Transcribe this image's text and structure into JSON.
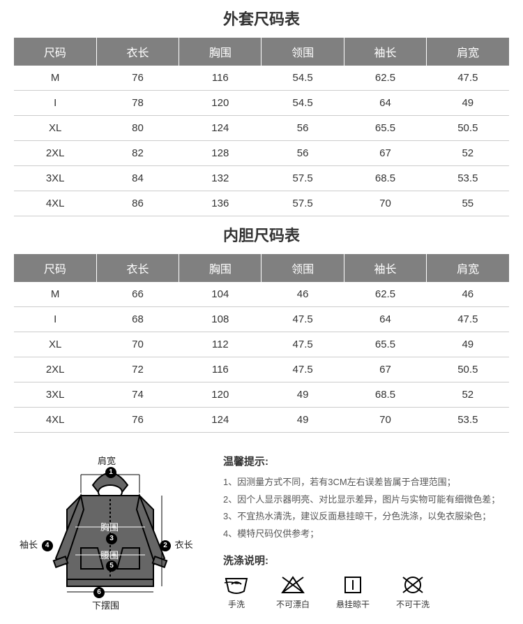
{
  "table1": {
    "title": "外套尺码表",
    "columns": [
      "尺码",
      "衣长",
      "胸围",
      "领围",
      "袖长",
      "肩宽"
    ],
    "rows": [
      [
        "M",
        "76",
        "116",
        "54.5",
        "62.5",
        "47.5"
      ],
      [
        "I",
        "78",
        "120",
        "54.5",
        "64",
        "49"
      ],
      [
        "XL",
        "80",
        "124",
        "56",
        "65.5",
        "50.5"
      ],
      [
        "2XL",
        "82",
        "128",
        "56",
        "67",
        "52"
      ],
      [
        "3XL",
        "84",
        "132",
        "57.5",
        "68.5",
        "53.5"
      ],
      [
        "4XL",
        "86",
        "136",
        "57.5",
        "70",
        "55"
      ]
    ],
    "header_bg": "#808080",
    "header_fg": "#ffffff",
    "row_border": "#cccccc"
  },
  "table2": {
    "title": "内胆尺码表",
    "columns": [
      "尺码",
      "衣长",
      "胸围",
      "领围",
      "袖长",
      "肩宽"
    ],
    "rows": [
      [
        "M",
        "66",
        "104",
        "46",
        "62.5",
        "46"
      ],
      [
        "I",
        "68",
        "108",
        "47.5",
        "64",
        "47.5"
      ],
      [
        "XL",
        "70",
        "112",
        "47.5",
        "65.5",
        "49"
      ],
      [
        "2XL",
        "72",
        "116",
        "47.5",
        "67",
        "50.5"
      ],
      [
        "3XL",
        "74",
        "120",
        "49",
        "68.5",
        "52"
      ],
      [
        "4XL",
        "76",
        "124",
        "49",
        "70",
        "53.5"
      ]
    ],
    "header_bg": "#808080",
    "header_fg": "#ffffff",
    "row_border": "#cccccc"
  },
  "diagram": {
    "labels": {
      "shoulder": "肩宽",
      "chest": "胸围",
      "waist": "腰围",
      "sleeve": "袖长",
      "length": "衣长",
      "hem": "下摆围"
    },
    "badges": [
      "1",
      "2",
      "3",
      "4",
      "5",
      "6"
    ]
  },
  "notes": {
    "title": "温馨提示:",
    "items": [
      "1、因测量方式不同，若有3CM左右误差皆属于合理范围；",
      "2、因个人显示器明亮、对比显示差异，图片与实物可能有细微色差；",
      "3、不宜热水清洗，建议反面悬挂晾干，分色洗涤，以免衣服染色；",
      "4、模特尺码仅供参考；"
    ]
  },
  "wash": {
    "title": "洗涤说明:",
    "items": [
      {
        "name": "hand-wash-icon",
        "label": "手洗"
      },
      {
        "name": "no-bleach-icon",
        "label": "不可漂白"
      },
      {
        "name": "hang-dry-icon",
        "label": "悬挂晾干"
      },
      {
        "name": "no-dryclean-icon",
        "label": "不可干洗"
      }
    ]
  }
}
